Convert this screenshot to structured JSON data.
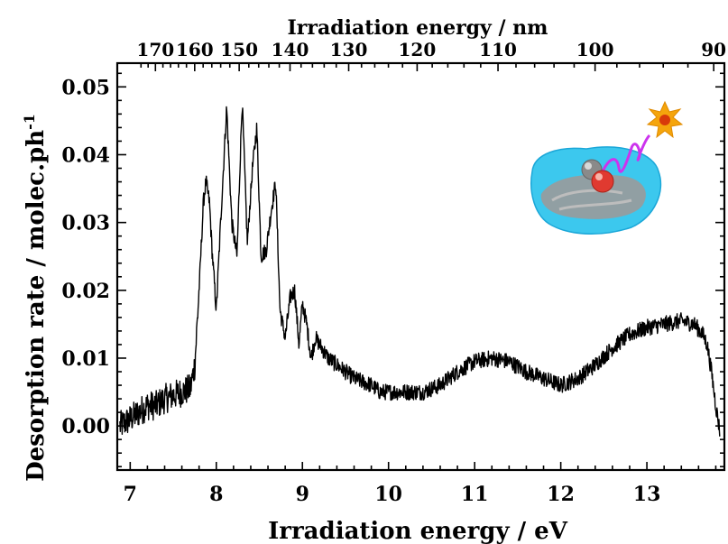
{
  "chart_data": {
    "type": "line",
    "xlabel": "Irradiation energy / eV",
    "ylabel": "Desorption rate / molec.ph",
    "ylabel_superscript": "-1",
    "top_xlabel": "Irradiation energy / nm",
    "xlim": [
      6.85,
      13.9
    ],
    "ylim": [
      -0.0065,
      0.0535
    ],
    "x_ticks": [
      7,
      8,
      9,
      10,
      11,
      12,
      13
    ],
    "y_ticks": [
      "0.00",
      "0.01",
      "0.02",
      "0.03",
      "0.04",
      "0.05"
    ],
    "top_ticks_nm": [
      "170",
      "160",
      "150",
      "140",
      "130",
      "120",
      "110",
      "100",
      "90"
    ],
    "grid": false,
    "legend": "none",
    "series": [
      {
        "color": "#000000",
        "x": [
          6.88,
          7.0,
          7.1,
          7.2,
          7.3,
          7.4,
          7.5,
          7.6,
          7.7,
          7.75,
          7.8,
          7.85,
          7.88,
          7.92,
          7.95,
          8.0,
          8.05,
          8.12,
          8.18,
          8.24,
          8.3,
          8.36,
          8.42,
          8.47,
          8.52,
          8.58,
          8.64,
          8.69,
          8.74,
          8.8,
          8.86,
          8.91,
          8.96,
          9.0,
          9.05,
          9.1,
          9.15,
          9.2,
          9.3,
          9.4,
          9.5,
          9.6,
          9.7,
          9.8,
          9.9,
          10.0,
          10.2,
          10.4,
          10.6,
          10.8,
          11.0,
          11.2,
          11.4,
          11.6,
          11.8,
          12.0,
          12.2,
          12.4,
          12.6,
          12.8,
          13.0,
          13.2,
          13.4,
          13.55,
          13.65,
          13.7,
          13.75,
          13.8,
          13.85
        ],
        "y": [
          0.0,
          0.001,
          0.002,
          0.003,
          0.003,
          0.004,
          0.0045,
          0.005,
          0.0055,
          0.009,
          0.02,
          0.033,
          0.036,
          0.033,
          0.026,
          0.017,
          0.03,
          0.047,
          0.03,
          0.025,
          0.048,
          0.027,
          0.038,
          0.044,
          0.025,
          0.026,
          0.032,
          0.036,
          0.017,
          0.013,
          0.019,
          0.02,
          0.012,
          0.018,
          0.015,
          0.01,
          0.013,
          0.012,
          0.01,
          0.009,
          0.008,
          0.007,
          0.0065,
          0.006,
          0.005,
          0.005,
          0.005,
          0.005,
          0.006,
          0.008,
          0.0095,
          0.01,
          0.0095,
          0.008,
          0.007,
          0.006,
          0.007,
          0.009,
          0.0115,
          0.0135,
          0.0145,
          0.015,
          0.0155,
          0.015,
          0.0135,
          0.012,
          0.008,
          0.003,
          -0.001
        ]
      }
    ]
  },
  "inset": {
    "description_icons": [
      "star-icon",
      "photon-wave-icon",
      "molecule-icon",
      "ice-surface-icon"
    ],
    "colors": {
      "star": "#f5a50c",
      "star_core": "#d83a0a",
      "wave": "#cc33ee",
      "ice": "#3cc8ee",
      "grain": "#9a9a9a",
      "atom_o": "#e03a30",
      "atom_c": "#888888"
    }
  }
}
